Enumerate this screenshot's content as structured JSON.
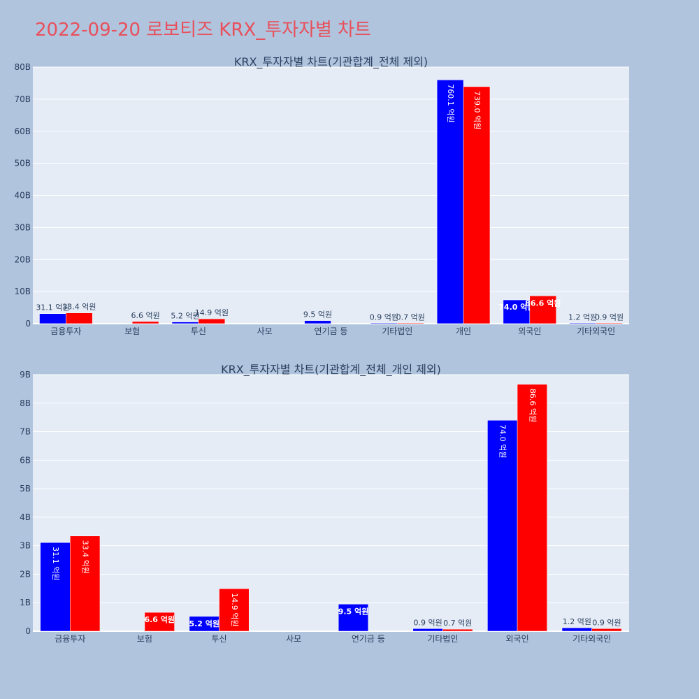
{
  "page_title": "2022-09-20 로보티즈 KRX_투자자별 차트",
  "colors": {
    "background": "#b0c4de",
    "plot_bg": "#e5ecf6",
    "title": "#e8505b",
    "series_a": "#0000ff",
    "series_b": "#ff0000",
    "text": "#2a3f5f",
    "grid": "#ffffff"
  },
  "chart_data": [
    {
      "type": "bar",
      "title": "KRX_투자자별 차트(기관합계_전체 제외)",
      "categories": [
        "금융투자",
        "보험",
        "투신",
        "사모",
        "연기금 등",
        "기타법인",
        "개인",
        "외국인",
        "기타외국인"
      ],
      "ylim": [
        0,
        80
      ],
      "yticks": [
        0,
        10,
        20,
        30,
        40,
        50,
        60,
        70,
        80
      ],
      "ytick_labels": [
        "0",
        "10B",
        "20B",
        "30B",
        "40B",
        "50B",
        "60B",
        "70B",
        "80B"
      ],
      "grid": true,
      "series": [
        {
          "values": [
            3.11,
            null,
            0.52,
            null,
            0.95,
            0.09,
            76.01,
            7.4,
            0.12
          ],
          "labels": [
            "31.1 억원",
            "",
            "5.2 억원",
            "",
            "9.5 억원",
            "0.9 억원",
            "760.1 억원",
            "74.0 억원",
            "1.2 억원"
          ]
        },
        {
          "values": [
            3.34,
            0.66,
            1.49,
            null,
            null,
            0.07,
            73.9,
            8.66,
            0.09
          ],
          "labels": [
            "33.4 억원",
            "6.6 억원",
            "14.9 억원",
            "",
            "",
            "0.7 억원",
            "739.0 억원",
            "86.6 억원",
            "0.9 억원"
          ]
        }
      ]
    },
    {
      "type": "bar",
      "title": "KRX_투자자별 차트(기관합계_전체_개인 제외)",
      "categories": [
        "금융투자",
        "보험",
        "투신",
        "사모",
        "연기금 등",
        "기타법인",
        "외국인",
        "기타외국인"
      ],
      "ylim": [
        0,
        9
      ],
      "yticks": [
        0,
        1,
        2,
        3,
        4,
        5,
        6,
        7,
        8,
        9
      ],
      "ytick_labels": [
        "0",
        "1B",
        "2B",
        "3B",
        "4B",
        "5B",
        "6B",
        "7B",
        "8B",
        "9B"
      ],
      "grid": true,
      "series": [
        {
          "values": [
            3.11,
            null,
            0.52,
            null,
            0.95,
            0.09,
            7.4,
            0.12
          ],
          "labels": [
            "31.1 억원",
            "",
            "5.2 억원",
            "",
            "9.5 억원",
            "0.9 억원",
            "74.0 억원",
            "1.2 억원"
          ]
        },
        {
          "values": [
            3.34,
            0.66,
            1.49,
            null,
            null,
            0.07,
            8.66,
            0.09
          ],
          "labels": [
            "33.4 억원",
            "6.6 억원",
            "14.9 억원",
            "",
            "",
            "0.7 억원",
            "86.6 억원",
            "0.9 억원"
          ]
        }
      ]
    }
  ]
}
